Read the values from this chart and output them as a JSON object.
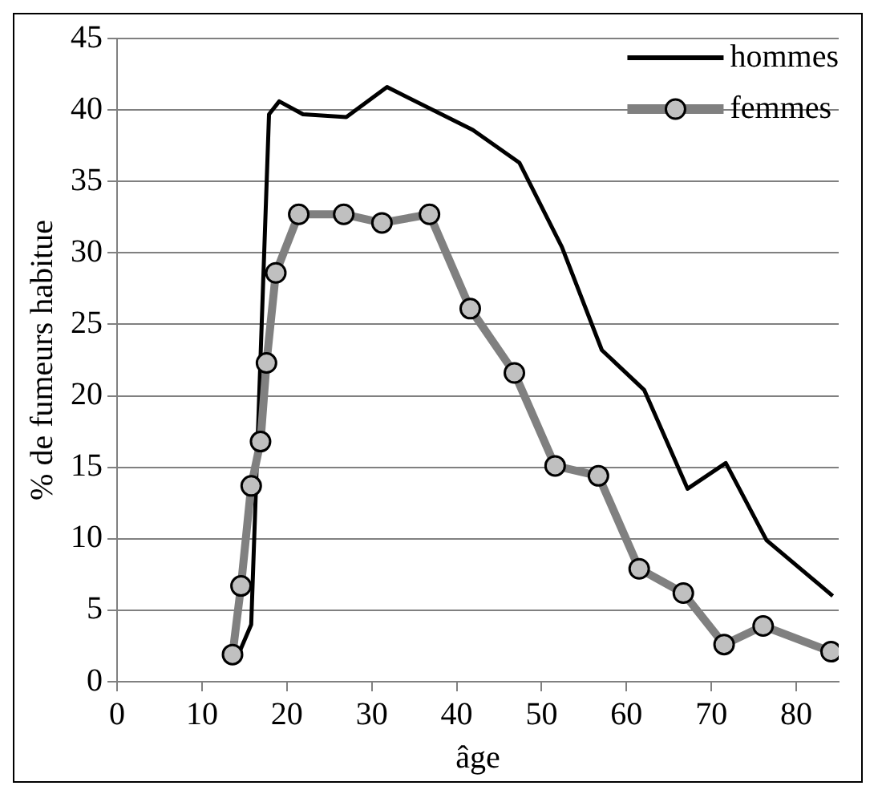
{
  "chart_data": {
    "type": "line",
    "xlabel": "âge",
    "ylabel": "% de fumeurs habitue",
    "xlim": [
      0,
      85
    ],
    "xticks": [
      0,
      10,
      20,
      30,
      40,
      50,
      60,
      70,
      80
    ],
    "ylim": [
      0,
      45
    ],
    "yticks": [
      0,
      5,
      10,
      15,
      20,
      25,
      30,
      35,
      40,
      45
    ],
    "grid": "y",
    "legend": "top right",
    "series": [
      {
        "name": "hommes",
        "color": "#000000",
        "marker": "none",
        "x": [
          14,
          15.8,
          17.9,
          19.1,
          21.9,
          27,
          31.8,
          41.9,
          47.4,
          52.4,
          57.1,
          62.1,
          67.2,
          71.7,
          76.5,
          84.3
        ],
        "values": [
          1.5,
          4,
          39.7,
          40.6,
          39.7,
          39.5,
          41.6,
          38.6,
          36.3,
          30.4,
          23.2,
          20.4,
          13.5,
          15.3,
          9.9,
          6
        ]
      },
      {
        "name": "femmes",
        "color": "#808080",
        "marker": "circle",
        "x": [
          13.6,
          14.6,
          15.8,
          16.9,
          17.6,
          18.7,
          21.4,
          26.7,
          31.2,
          36.8,
          41.6,
          46.8,
          51.6,
          56.7,
          61.5,
          66.7,
          71.5,
          76.1,
          84.1
        ],
        "values": [
          1.9,
          6.7,
          13.7,
          16.8,
          22.3,
          28.6,
          32.7,
          32.7,
          32.1,
          32.7,
          26.1,
          21.6,
          15.1,
          14.4,
          7.9,
          6.2,
          2.6,
          3.9,
          2.1
        ]
      }
    ]
  }
}
